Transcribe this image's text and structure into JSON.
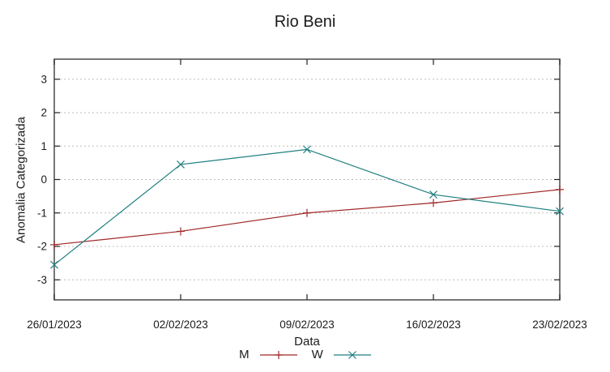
{
  "title": "Rio Beni",
  "chart_data": {
    "type": "line",
    "title": "Rio Beni",
    "xlabel": "Data",
    "ylabel": "Anomalia Categorizada",
    "categories": [
      "26/01/2023",
      "02/02/2023",
      "09/02/2023",
      "16/02/2023",
      "23/02/2023"
    ],
    "series": [
      {
        "name": "M",
        "marker": "plus",
        "color": "#a02828",
        "values": [
          -1.95,
          -1.55,
          -1.0,
          -0.7,
          -0.3
        ]
      },
      {
        "name": "W",
        "marker": "cross",
        "color": "#1f7f80",
        "values": [
          -2.55,
          0.45,
          0.9,
          -0.45,
          -0.95
        ]
      }
    ],
    "yticks": [
      -3,
      -2,
      -1,
      0,
      1,
      2,
      3
    ],
    "ylim": [
      -3.6,
      3.6
    ],
    "grid": "horizontal-dotted",
    "legend_position": "bottom-center"
  },
  "colors": {
    "background": "#ffffff",
    "text": "#1b1b1b",
    "border": "#555555",
    "tick": "#222222",
    "grid": "#bdbdbd"
  }
}
